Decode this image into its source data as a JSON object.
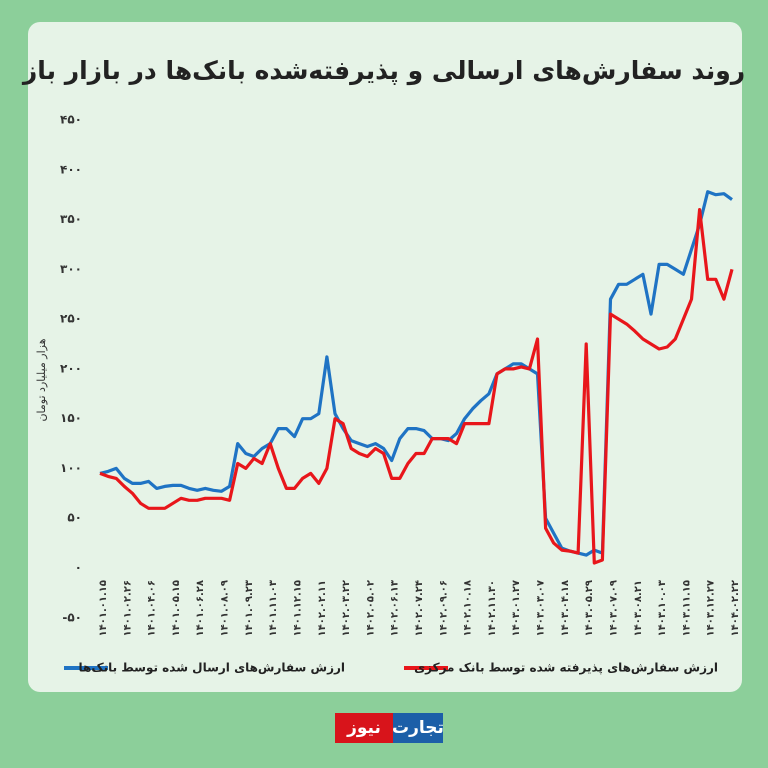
{
  "chart_data": {
    "type": "line",
    "title": "روند سفارش‌های ارسالی و پذیرفته‌شده بانک‌ها در بازار باز",
    "y_label": "هزار میلیارد تومان",
    "categories": [
      "۱۴۰۱.۰۱.۱۵",
      null,
      null,
      "۱۴۰۱.۰۲.۲۶",
      null,
      null,
      "۱۴۰۱.۰۴.۰۶",
      null,
      null,
      "۱۴۰۱.۰۵.۱۵",
      null,
      null,
      "۱۴۰۱.۰۶.۲۸",
      null,
      null,
      "۱۴۰۱.۰۸.۰۹",
      null,
      null,
      "۱۴۰۱.۰۹.۲۳",
      null,
      null,
      "۱۴۰۱.۱۱.۰۳",
      null,
      null,
      "۱۴۰۱.۱۲.۱۵",
      null,
      null,
      "۱۴۰۲.۰۲.۱۱",
      null,
      null,
      "۱۴۰۲.۰۳.۲۲",
      null,
      null,
      "۱۴۰۲.۰۵.۰۲",
      null,
      null,
      "۱۴۰۲.۰۶.۱۳",
      null,
      null,
      "۱۴۰۲.۰۷.۲۴",
      null,
      null,
      "۱۴۰۲.۰۹.۰۶",
      null,
      null,
      "۱۴۰۲.۱۰.۱۸",
      null,
      null,
      "۱۴۰۲.۱۱.۳۰",
      null,
      null,
      "۱۴۰۳.۰۱.۲۷",
      null,
      null,
      "۱۴۰۳.۰۳.۰۷",
      null,
      null,
      "۱۴۰۳.۰۴.۱۸",
      null,
      null,
      "۱۴۰۳.۰۵.۲۹",
      null,
      null,
      "۱۴۰۳.۰۷.۰۹",
      null,
      null,
      "۱۴۰۳.۰۸.۲۱",
      null,
      null,
      "۱۴۰۳.۱۰.۰۳",
      null,
      null,
      "۱۴۰۳.۱۱.۱۵",
      null,
      null,
      "۱۴۰۳.۱۲.۲۷",
      null,
      null,
      "۱۴۰۴.۰۲.۲۲"
    ],
    "series": [
      {
        "name": "ارزش سفارش‌های ارسال شده توسط بانک‌ها",
        "color": "#1f73c4",
        "values": [
          95,
          97,
          100,
          90,
          85,
          85,
          87,
          80,
          82,
          83,
          83,
          80,
          78,
          80,
          78,
          77,
          82,
          125,
          115,
          112,
          120,
          125,
          140,
          140,
          132,
          150,
          150,
          155,
          212,
          155,
          140,
          128,
          125,
          122,
          125,
          120,
          108,
          130,
          140,
          140,
          138,
          130,
          130,
          128,
          135,
          150,
          160,
          168,
          175,
          195,
          200,
          205,
          205,
          200,
          195,
          50,
          35,
          20,
          17,
          15,
          13,
          18,
          15,
          270,
          285,
          285,
          290,
          295,
          255,
          305,
          305,
          300,
          295,
          320,
          345,
          378,
          375,
          376,
          370
        ]
      },
      {
        "name": "ارزش سفارش‌های پذیرفته شده توسط بانک مرکزی",
        "color": "#e8161b",
        "values": [
          95,
          92,
          90,
          82,
          75,
          65,
          60,
          60,
          60,
          65,
          70,
          68,
          68,
          70,
          70,
          70,
          68,
          105,
          100,
          110,
          105,
          125,
          100,
          80,
          80,
          90,
          95,
          85,
          100,
          150,
          145,
          120,
          115,
          112,
          120,
          115,
          90,
          90,
          105,
          115,
          115,
          130,
          130,
          130,
          125,
          145,
          145,
          145,
          145,
          195,
          200,
          200,
          202,
          200,
          230,
          40,
          25,
          18,
          17,
          15,
          225,
          5,
          8,
          255,
          250,
          245,
          238,
          230,
          225,
          220,
          222,
          230,
          250,
          270,
          360,
          290,
          290,
          270,
          300
        ]
      }
    ],
    "ylim": [
      -50,
      450
    ],
    "yticks": [
      {
        "value": -50,
        "label": "-۵۰"
      },
      {
        "value": 0,
        "label": "۰"
      },
      {
        "value": 50,
        "label": "۵۰"
      },
      {
        "value": 100,
        "label": "۱۰۰"
      },
      {
        "value": 150,
        "label": "۱۵۰"
      },
      {
        "value": 200,
        "label": "۲۰۰"
      },
      {
        "value": 250,
        "label": "۲۵۰"
      },
      {
        "value": 300,
        "label": "۳۰۰"
      },
      {
        "value": 350,
        "label": "۳۵۰"
      },
      {
        "value": 400,
        "label": "۴۰۰"
      },
      {
        "value": 450,
        "label": "۴۵۰"
      }
    ],
    "grid": false
  },
  "brand": {
    "part1": "تجارت",
    "part2": "نیوز"
  }
}
